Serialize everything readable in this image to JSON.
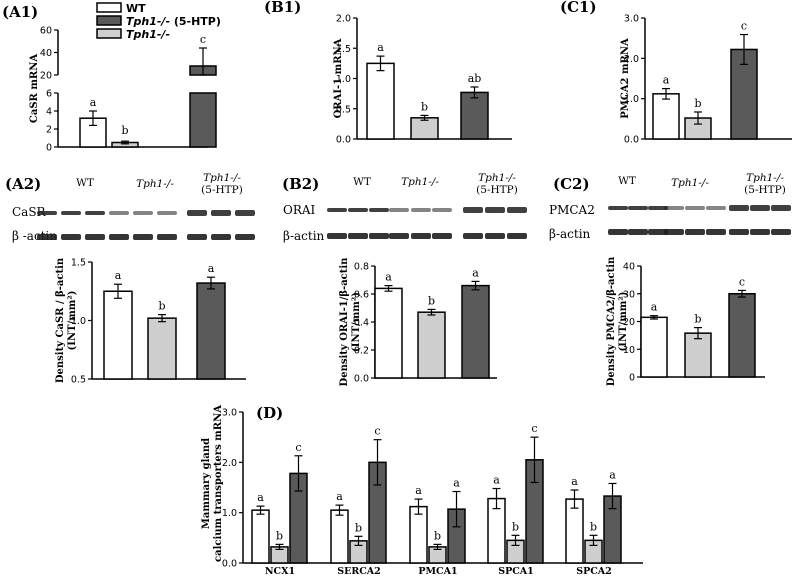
{
  "colors": {
    "wt": "#ffffff",
    "htp": "#5a5a5a",
    "ko": "#cfcfcf",
    "axis": "#000000",
    "band": "#1f1f1f"
  },
  "legend": [
    {
      "label": "WT",
      "italic": false,
      "color": "#ffffff"
    },
    {
      "label": "Tph1-/- (5-HTP)",
      "italic_part": "Tph1-/-",
      "plain_part": " (5-HTP)",
      "color": "#5a5a5a"
    },
    {
      "label": "Tph1-/-",
      "italic": true,
      "color": "#cfcfcf"
    }
  ],
  "chart_data": [
    {
      "id": "A1",
      "panel": "(A1)",
      "type": "bar",
      "ylabel": "CaSR mRNA",
      "categories": [
        "WT",
        "Tph1-/-",
        "Tph1-/- (5-HTP)"
      ],
      "values": [
        3.2,
        0.5,
        28
      ],
      "errors": [
        0.8,
        0.15,
        16
      ],
      "letters": [
        "a",
        "b",
        "c"
      ],
      "axis_break": {
        "lower": [
          0,
          6
        ],
        "upper": [
          20,
          60
        ]
      },
      "yticks_lower": [
        0,
        2,
        4,
        6
      ],
      "yticks_upper": [
        20,
        40,
        60
      ]
    },
    {
      "id": "B1",
      "panel": "(B1)",
      "type": "bar",
      "ylabel": "ORAI-1 mRNA",
      "categories": [
        "WT",
        "Tph1-/-",
        "Tph1-/- (5-HTP)"
      ],
      "values": [
        1.25,
        0.35,
        0.77
      ],
      "errors": [
        0.12,
        0.04,
        0.09
      ],
      "letters": [
        "a",
        "b",
        "ab"
      ],
      "ylim": [
        0,
        2.0
      ],
      "yticks": [
        "0.0",
        "0.5",
        "1.0",
        "1.5",
        "2.0"
      ]
    },
    {
      "id": "C1",
      "panel": "(C1)",
      "type": "bar",
      "ylabel": "PMCA2 mRNA",
      "categories": [
        "WT",
        "Tph1-/-",
        "Tph1-/- (5-HTP)"
      ],
      "values": [
        1.12,
        0.52,
        2.22
      ],
      "errors": [
        0.13,
        0.15,
        0.37
      ],
      "letters": [
        "a",
        "b",
        "c"
      ],
      "ylim": [
        0,
        3.0
      ],
      "yticks": [
        "0.0",
        "1.0",
        "2.0",
        "3.0"
      ]
    },
    {
      "id": "A2",
      "panel": "(A2)",
      "type": "bar",
      "ylabel": "Density CaSR / β-actin (INT/mm²)",
      "ylabel_lines": [
        "Density CaSR / β-actin",
        "(INT/mm²)"
      ],
      "categories": [
        "WT",
        "Tph1-/-",
        "Tph1-/- (5-HTP)"
      ],
      "values": [
        1.25,
        1.02,
        1.32
      ],
      "errors": [
        0.06,
        0.03,
        0.05
      ],
      "letters": [
        "a",
        "b",
        "a"
      ],
      "ylim": [
        0.5,
        1.5
      ],
      "yticks": [
        "0.5",
        "1.0",
        "1.5"
      ]
    },
    {
      "id": "B2",
      "panel": "(B2)",
      "type": "bar",
      "ylabel": "Density ORAI-1/β-actin (INT/mm²)",
      "ylabel_lines": [
        "Density ORAI-1/β-actin",
        "(INT/mm²)"
      ],
      "categories": [
        "WT",
        "Tph1-/-",
        "Tph1-/- (5-HTP)"
      ],
      "values": [
        0.64,
        0.47,
        0.66
      ],
      "errors": [
        0.02,
        0.02,
        0.03
      ],
      "letters": [
        "a",
        "b",
        "a"
      ],
      "ylim": [
        0,
        0.8
      ],
      "yticks": [
        "0.0",
        "0.2",
        "0.4",
        "0.6",
        "0.8"
      ]
    },
    {
      "id": "C2",
      "panel": "(C2)",
      "type": "bar",
      "ylabel": "Density PMCA2/β-actin (INT/mm²)",
      "ylabel_lines": [
        "Density PMCA2/β-actin",
        "(INT/mm²)"
      ],
      "categories": [
        "WT",
        "Tph1-/-",
        "Tph1-/- (5-HTP)"
      ],
      "values": [
        21.5,
        15.8,
        30
      ],
      "errors": [
        0.6,
        2,
        1.2
      ],
      "letters": [
        "a",
        "b",
        "c"
      ],
      "ylim": [
        0,
        40
      ],
      "yticks": [
        "0",
        "10",
        "20",
        "30",
        "40"
      ]
    },
    {
      "id": "D",
      "panel": "(D)",
      "type": "bar",
      "ylabel": "Mammary gland calcium transporters mRNA",
      "ylabel_lines": [
        "Mammary gland",
        "calcium transporters mRNA"
      ],
      "categories": [
        "NCX1",
        "SERCA2",
        "PMCA1",
        "SPCA1",
        "SPCA2"
      ],
      "series": [
        {
          "values": [
            1.05,
            1.05,
            1.12,
            1.28,
            1.27
          ],
          "errors": [
            0.08,
            0.1,
            0.15,
            0.2,
            0.18
          ],
          "letters": [
            "a",
            "a",
            "a",
            "a",
            "a"
          ],
          "color": "#ffffff"
        },
        {
          "values": [
            0.32,
            0.44,
            0.32,
            0.45,
            0.45
          ],
          "errors": [
            0.05,
            0.09,
            0.05,
            0.1,
            0.1
          ],
          "letters": [
            "b",
            "b",
            "b",
            "b",
            "b"
          ],
          "color": "#cfcfcf"
        },
        {
          "values": [
            1.78,
            2.0,
            1.07,
            2.05,
            1.33
          ],
          "errors": [
            0.35,
            0.45,
            0.35,
            0.45,
            0.25
          ],
          "letters": [
            "c",
            "c",
            "a",
            "c",
            "a"
          ],
          "color": "#5a5a5a"
        }
      ],
      "ylim": [
        0,
        3.0
      ],
      "yticks": [
        "0.0",
        "1.0",
        "2.0",
        "3.0"
      ]
    }
  ],
  "blots": [
    {
      "id": "A2",
      "groups": [
        {
          "text": "WT",
          "italic": false
        },
        {
          "text": "Tph1-/-",
          "italic": true
        },
        {
          "text": "Tph1-/-",
          "italic": true,
          "sub": "(5-HTP)"
        }
      ],
      "rows": [
        "CaSR",
        "β -actin"
      ]
    },
    {
      "id": "B2",
      "groups": [
        {
          "text": "WT",
          "italic": false
        },
        {
          "text": "Tph1-/-",
          "italic": true
        },
        {
          "text": "Tph1-/-",
          "italic": true,
          "sub": "(5-HTP)"
        }
      ],
      "rows": [
        "ORAI",
        "β-actin"
      ]
    },
    {
      "id": "C2",
      "groups": [
        {
          "text": "WT",
          "italic": false
        },
        {
          "text": "Tph1-/-",
          "italic": true
        },
        {
          "text": "Tph1-/-",
          "italic": true,
          "sub": "(5-HTP)"
        }
      ],
      "rows": [
        "PMCA2",
        "β-actin"
      ]
    }
  ]
}
